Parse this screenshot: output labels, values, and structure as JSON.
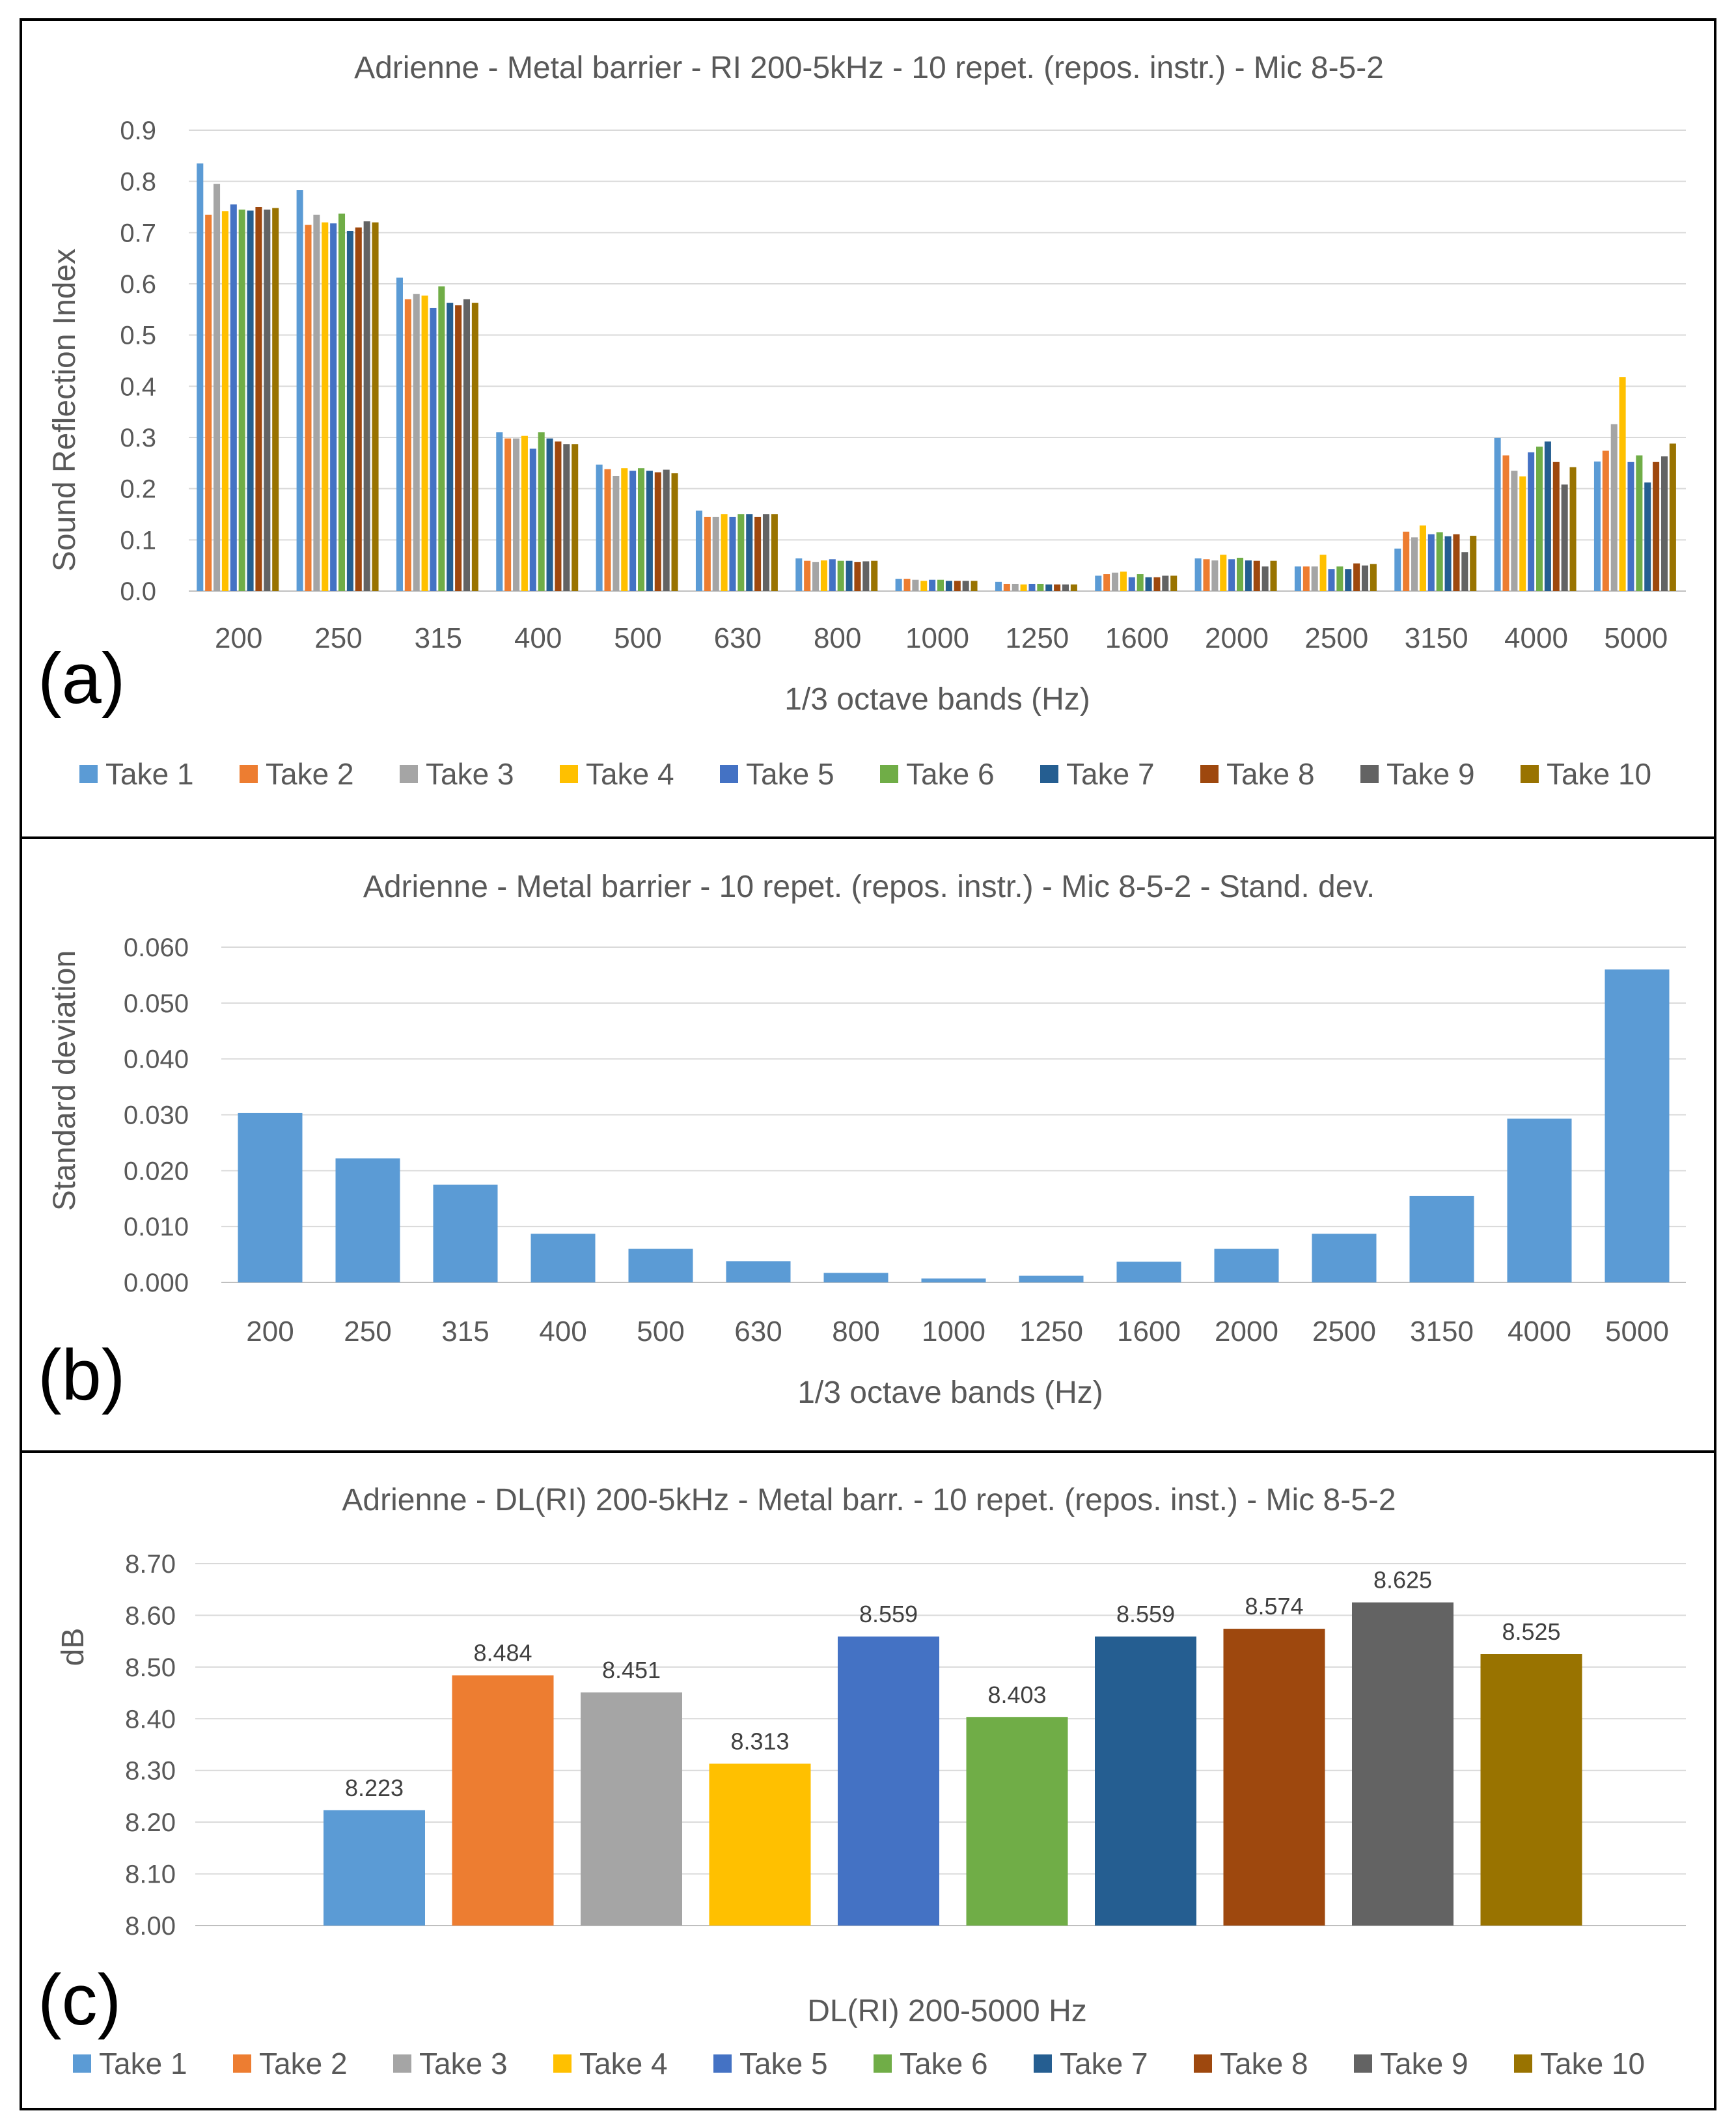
{
  "colors": [
    "#5B9BD5",
    "#ED7D31",
    "#A5A5A5",
    "#FFC000",
    "#4472C4",
    "#70AD47",
    "#255E91",
    "#9E480E",
    "#636363",
    "#997300"
  ],
  "chart_data": [
    {
      "type": "bar",
      "panel_label": "(a)",
      "title": "Adrienne - Metal barrier - RI 200-5kHz - 10 repet. (repos. instr.) - Mic 8-5-2",
      "xlabel": "1/3 octave bands (Hz)",
      "ylabel": "Sound Reflection Index",
      "ylim": [
        0,
        0.9
      ],
      "yticks": [
        "0.0",
        "0.1",
        "0.2",
        "0.3",
        "0.4",
        "0.5",
        "0.6",
        "0.7",
        "0.8",
        "0.9"
      ],
      "grid": true,
      "legend": "bottom",
      "categories": [
        "200",
        "250",
        "315",
        "400",
        "500",
        "630",
        "800",
        "1000",
        "1250",
        "1600",
        "2000",
        "2500",
        "3150",
        "4000",
        "5000"
      ],
      "series": [
        {
          "name": "Take 1",
          "values": [
            0.835,
            0.783,
            0.612,
            0.31,
            0.247,
            0.157,
            0.064,
            0.024,
            0.018,
            0.03,
            0.064,
            0.048,
            0.083,
            0.299,
            0.253
          ]
        },
        {
          "name": "Take 2",
          "values": [
            0.735,
            0.715,
            0.57,
            0.298,
            0.238,
            0.145,
            0.059,
            0.024,
            0.014,
            0.033,
            0.062,
            0.048,
            0.116,
            0.265,
            0.274
          ]
        },
        {
          "name": "Take 3",
          "values": [
            0.795,
            0.735,
            0.58,
            0.298,
            0.225,
            0.145,
            0.057,
            0.022,
            0.014,
            0.036,
            0.06,
            0.048,
            0.105,
            0.235,
            0.326
          ]
        },
        {
          "name": "Take 4",
          "values": [
            0.742,
            0.72,
            0.577,
            0.303,
            0.24,
            0.15,
            0.06,
            0.02,
            0.013,
            0.038,
            0.071,
            0.071,
            0.128,
            0.224,
            0.418
          ]
        },
        {
          "name": "Take 5",
          "values": [
            0.755,
            0.718,
            0.553,
            0.278,
            0.235,
            0.145,
            0.062,
            0.022,
            0.014,
            0.027,
            0.062,
            0.043,
            0.111,
            0.271,
            0.252
          ]
        },
        {
          "name": "Take 6",
          "values": [
            0.745,
            0.737,
            0.595,
            0.31,
            0.24,
            0.15,
            0.059,
            0.022,
            0.014,
            0.033,
            0.065,
            0.048,
            0.115,
            0.282,
            0.265
          ]
        },
        {
          "name": "Take 7",
          "values": [
            0.743,
            0.703,
            0.563,
            0.298,
            0.235,
            0.15,
            0.059,
            0.02,
            0.013,
            0.027,
            0.06,
            0.043,
            0.107,
            0.292,
            0.212
          ]
        },
        {
          "name": "Take 8",
          "values": [
            0.75,
            0.71,
            0.558,
            0.292,
            0.232,
            0.145,
            0.057,
            0.02,
            0.013,
            0.027,
            0.059,
            0.054,
            0.111,
            0.252,
            0.252
          ]
        },
        {
          "name": "Take 9",
          "values": [
            0.745,
            0.722,
            0.57,
            0.287,
            0.237,
            0.15,
            0.058,
            0.02,
            0.013,
            0.03,
            0.048,
            0.05,
            0.076,
            0.208,
            0.263
          ]
        },
        {
          "name": "Take 10",
          "values": [
            0.748,
            0.72,
            0.563,
            0.287,
            0.23,
            0.15,
            0.059,
            0.02,
            0.013,
            0.03,
            0.059,
            0.053,
            0.108,
            0.242,
            0.288
          ]
        }
      ]
    },
    {
      "type": "bar",
      "panel_label": "(b)",
      "title": "Adrienne - Metal barrier - 10 repet. (repos. instr.) - Mic 8-5-2 - Stand. dev.",
      "xlabel": "1/3 octave bands (Hz)",
      "ylabel": "Standard deviation",
      "ylim": [
        0,
        0.06
      ],
      "yticks": [
        "0.000",
        "0.010",
        "0.020",
        "0.030",
        "0.040",
        "0.050",
        "0.060"
      ],
      "grid": true,
      "legend": "none",
      "categories": [
        "200",
        "250",
        "315",
        "400",
        "500",
        "630",
        "800",
        "1000",
        "1250",
        "1600",
        "2000",
        "2500",
        "3150",
        "4000",
        "5000"
      ],
      "values": [
        0.0303,
        0.0222,
        0.0175,
        0.0087,
        0.006,
        0.0038,
        0.0017,
        0.0007,
        0.0012,
        0.0037,
        0.006,
        0.0087,
        0.0155,
        0.0293,
        0.056
      ]
    },
    {
      "type": "bar",
      "panel_label": "(c)",
      "title": "Adrienne - DL(RI) 200-5kHz - Metal barr. - 10 repet. (repos. inst.) - Mic 8-5-2",
      "xlabel": "DL(RI) 200-5000 Hz",
      "ylabel": "dB",
      "ylim": [
        8.0,
        8.7
      ],
      "yticks": [
        "8.00",
        "8.10",
        "8.20",
        "8.30",
        "8.40",
        "8.50",
        "8.60",
        "8.70"
      ],
      "grid": true,
      "legend": "bottom",
      "categories": [
        "DL(RI) 200-5000 Hz"
      ],
      "series": [
        {
          "name": "Take 1",
          "value": 8.223,
          "label": "8.223"
        },
        {
          "name": "Take 2",
          "value": 8.484,
          "label": "8.484"
        },
        {
          "name": "Take 3",
          "value": 8.451,
          "label": "8.451"
        },
        {
          "name": "Take 4",
          "value": 8.313,
          "label": "8.313"
        },
        {
          "name": "Take 5",
          "value": 8.559,
          "label": "8.559"
        },
        {
          "name": "Take 6",
          "value": 8.403,
          "label": "8.403"
        },
        {
          "name": "Take 7",
          "value": 8.559,
          "label": "8.559"
        },
        {
          "name": "Take 8",
          "value": 8.574,
          "label": "8.574"
        },
        {
          "name": "Take 9",
          "value": 8.625,
          "label": "8.625"
        },
        {
          "name": "Take 10",
          "value": 8.525,
          "label": "8.525"
        }
      ]
    }
  ]
}
